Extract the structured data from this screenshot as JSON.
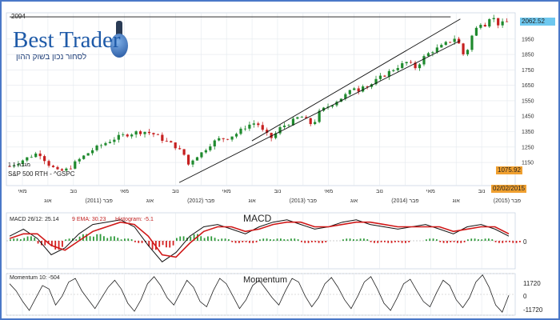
{
  "top_value": "2094",
  "logo": {
    "name": "Best Trader",
    "tagline": "לסחור נכון בשוק ההון"
  },
  "price_panel": {
    "symbol_label": "S&P 500 RTH - ^GSPC",
    "small_label": "מגבה 1 1",
    "current_price": "2062.52",
    "last_close_marker": "1075.92",
    "date_marker": "02/02/2015",
    "current_price_color": "#6ec8ef",
    "marker_color": "#f0a030"
  },
  "macd_panel": {
    "title": "MACD",
    "legend": {
      "params": "MACD 26/12: 25.14",
      "ema": "9 EMA: 30.23",
      "histogram": "Histogram: -5.1"
    },
    "zero_label": "0"
  },
  "momentum_panel": {
    "title": "Momentum",
    "legend": "Momentum 10: -504",
    "upper_label": "11720",
    "zero_label": "0",
    "lower_label": "-11720"
  },
  "chart_data": [
    {
      "type": "candlestick",
      "title": "",
      "series_name": "S&P 500 RTH - ^GSPC",
      "ylim": [
        1000,
        2120
      ],
      "y_ticks": [
        1150,
        1250,
        1350,
        1450,
        1550,
        1650,
        1750,
        1850,
        1950
      ],
      "x_ticks": [
        "מאי",
        "אוג",
        "נוב",
        "(2011) פבר",
        "מאי",
        "אוג",
        "נוב",
        "(2012) פבר",
        "מאי",
        "אוג",
        "נוב",
        "(2013) פבר",
        "מאי",
        "אוג",
        "נוב",
        "(2014) פבר",
        "מאי",
        "אוג",
        "נוב",
        "(2015) פבר"
      ],
      "price_path": [
        [
          0,
          1125
        ],
        [
          3,
          1170
        ],
        [
          6,
          1215
        ],
        [
          8,
          1140
        ],
        [
          10,
          1090
        ],
        [
          12,
          1105
        ],
        [
          14,
          1160
        ],
        [
          17,
          1230
        ],
        [
          20,
          1280
        ],
        [
          22,
          1310
        ],
        [
          24,
          1330
        ],
        [
          26,
          1345
        ],
        [
          28,
          1350
        ],
        [
          30,
          1330
        ],
        [
          32,
          1290
        ],
        [
          34,
          1260
        ],
        [
          36,
          1200
        ],
        [
          37,
          1130
        ],
        [
          38,
          1180
        ],
        [
          40,
          1220
        ],
        [
          41,
          1260
        ],
        [
          43,
          1300
        ],
        [
          45,
          1310
        ],
        [
          47,
          1340
        ],
        [
          49,
          1390
        ],
        [
          51,
          1410
        ],
        [
          52,
          1360
        ],
        [
          53,
          1330
        ],
        [
          54,
          1310
        ],
        [
          55,
          1340
        ],
        [
          56,
          1380
        ],
        [
          58,
          1410
        ],
        [
          60,
          1450
        ],
        [
          61,
          1430
        ],
        [
          62,
          1400
        ],
        [
          63,
          1420
        ],
        [
          64,
          1480
        ],
        [
          66,
          1520
        ],
        [
          68,
          1560
        ],
        [
          70,
          1600
        ],
        [
          71,
          1640
        ],
        [
          72,
          1620
        ],
        [
          73,
          1660
        ],
        [
          74,
          1640
        ],
        [
          76,
          1690
        ],
        [
          78,
          1730
        ],
        [
          80,
          1770
        ],
        [
          82,
          1800
        ],
        [
          83,
          1780
        ],
        [
          84,
          1760
        ],
        [
          85,
          1820
        ],
        [
          87,
          1870
        ],
        [
          89,
          1900
        ],
        [
          91,
          1940
        ],
        [
          92,
          1960
        ],
        [
          93,
          1900
        ],
        [
          94,
          1820
        ],
        [
          95,
          1950
        ],
        [
          96,
          2000
        ],
        [
          97,
          2060
        ],
        [
          98,
          2040
        ],
        [
          99,
          2090
        ],
        [
          100,
          2080
        ],
        [
          101,
          2040
        ],
        [
          102,
          2055
        ],
        [
          103,
          2062
        ]
      ],
      "annotations": [
        {
          "type": "trend_line",
          "from": [
            0,
            2094
          ],
          "to": [
            91,
            2094
          ]
        },
        {
          "type": "channel_line",
          "from": [
            50,
            1290
          ],
          "to": [
            93,
            2080
          ]
        },
        {
          "type": "channel_line",
          "from": [
            35,
            1020
          ],
          "to": [
            93,
            1940
          ]
        }
      ]
    },
    {
      "type": "line+histogram",
      "title": "MACD",
      "series": [
        {
          "name": "MACD",
          "values": [
            0.2,
            0.5,
            0.1,
            -0.6,
            -0.3,
            0.3,
            0.7,
            0.8,
            0.9,
            0.6,
            -0.2,
            -0.9,
            -0.5,
            0.2,
            0.6,
            0.7,
            0.5,
            0.3,
            0.6,
            0.8,
            0.9,
            0.7,
            0.5,
            0.6,
            0.8,
            0.9,
            0.7,
            0.6,
            0.5,
            0.6,
            0.7,
            0.5,
            0.3,
            0.6,
            0.7,
            0.5,
            0.2
          ]
        },
        {
          "name": "9 EMA",
          "values": [
            0.1,
            0.3,
            0.3,
            -0.2,
            -0.4,
            0.0,
            0.4,
            0.6,
            0.8,
            0.7,
            0.2,
            -0.6,
            -0.7,
            -0.1,
            0.4,
            0.6,
            0.6,
            0.4,
            0.5,
            0.7,
            0.8,
            0.8,
            0.6,
            0.6,
            0.7,
            0.8,
            0.8,
            0.7,
            0.6,
            0.6,
            0.6,
            0.6,
            0.4,
            0.5,
            0.6,
            0.6,
            0.3
          ]
        }
      ],
      "histogram": [
        0.1,
        0.2,
        -0.2,
        -0.4,
        0.1,
        0.3,
        0.3,
        0.2,
        0.1,
        -0.1,
        -0.4,
        -0.3,
        0.2,
        0.3,
        0.2,
        0.1,
        -0.1,
        -0.1,
        0.1,
        0.1,
        0.1,
        -0.1,
        -0.1,
        0.0,
        0.1,
        0.1,
        -0.1,
        -0.1,
        -0.1,
        0.0,
        0.1,
        -0.1,
        -0.1,
        0.1,
        0.1,
        -0.1,
        -0.1
      ],
      "zero_line": true
    },
    {
      "type": "line",
      "title": "Momentum",
      "ylim": [
        -11720,
        11720
      ],
      "series": [
        {
          "name": "Momentum 10",
          "values": [
            6000,
            2000,
            -4000,
            -9000,
            -2000,
            5000,
            3000,
            -6000,
            -1000,
            7000,
            9000,
            2000,
            -3000,
            -8000,
            -2000,
            4000,
            8000,
            3000,
            -5000,
            -9500,
            -3000,
            6000,
            10000,
            5000,
            -2000,
            -6000,
            1000,
            8000,
            4000,
            -4000,
            -7000,
            2000,
            9000,
            6000,
            -1000,
            -8000,
            -3000,
            5000,
            8000,
            3000,
            -2000,
            -6000,
            2000,
            9000,
            7000,
            -1000,
            -7000,
            -2000,
            6000,
            9500,
            4000,
            -3000,
            -8000,
            -1000,
            7000,
            10000,
            3000,
            -5000,
            -9000,
            -2000,
            6000,
            8500,
            2000,
            -4000,
            -7000,
            1000,
            8000,
            5000,
            -3000,
            -7500,
            -2000,
            7000,
            11000,
            4000,
            -6000,
            -10000,
            -504
          ]
        }
      ]
    }
  ]
}
